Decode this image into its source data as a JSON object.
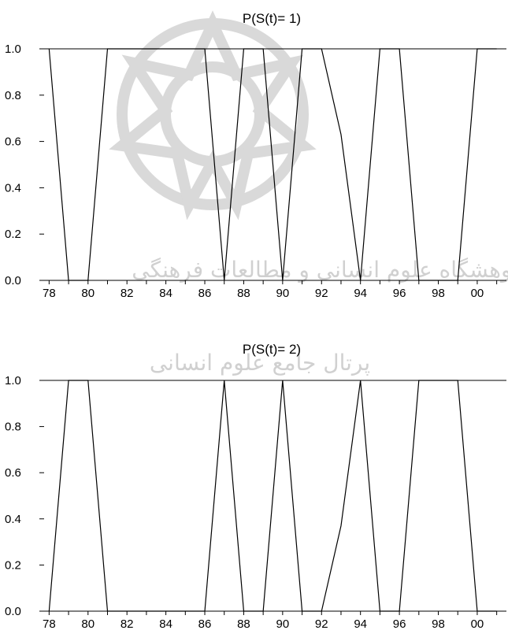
{
  "chart_data": [
    {
      "type": "line",
      "title": "P(S(t)= 1)",
      "x": [
        1978,
        1979,
        1980,
        1981,
        1982,
        1983,
        1984,
        1985,
        1986,
        1987,
        1988,
        1989,
        1990,
        1991,
        1992,
        1993,
        1994,
        1995,
        1996,
        1997,
        1998,
        1999,
        2000,
        2001
      ],
      "series": [
        {
          "values": [
            1.0,
            0.0,
            0.0,
            1.0,
            1.0,
            1.0,
            1.0,
            1.0,
            1.0,
            0.0,
            1.0,
            1.0,
            0.0,
            1.0,
            1.0,
            0.63,
            0.0,
            1.0,
            1.0,
            0.0,
            0.0,
            0.0,
            1.0,
            1.0
          ]
        }
      ],
      "xticks": [
        "78",
        "80",
        "82",
        "84",
        "86",
        "88",
        "90",
        "92",
        "94",
        "96",
        "98",
        "00"
      ],
      "yticks": [
        "0.0",
        "0.2",
        "0.4",
        "0.6",
        "0.8",
        "1.0"
      ],
      "xlim": [
        1977.5,
        2001.5
      ],
      "ylim": [
        0,
        1
      ],
      "xlabel": "",
      "ylabel": "",
      "grid": false
    },
    {
      "type": "line",
      "title": "P(S(t)= 2)",
      "x": [
        1978,
        1979,
        1980,
        1981,
        1982,
        1983,
        1984,
        1985,
        1986,
        1987,
        1988,
        1989,
        1990,
        1991,
        1992,
        1993,
        1994,
        1995,
        1996,
        1997,
        1998,
        1999,
        2000,
        2001
      ],
      "series": [
        {
          "values": [
            0.0,
            1.0,
            1.0,
            0.0,
            0.0,
            0.0,
            0.0,
            0.0,
            0.0,
            1.0,
            0.0,
            0.0,
            1.0,
            0.0,
            0.0,
            0.37,
            1.0,
            0.0,
            0.0,
            1.0,
            1.0,
            1.0,
            0.0,
            0.0
          ]
        }
      ],
      "xticks": [
        "78",
        "80",
        "82",
        "84",
        "86",
        "88",
        "90",
        "92",
        "94",
        "96",
        "98",
        "00"
      ],
      "yticks": [
        "0.0",
        "0.2",
        "0.4",
        "0.6",
        "0.8",
        "1.0"
      ],
      "xlim": [
        1977.5,
        2001.5
      ],
      "ylim": [
        0,
        1
      ],
      "xlabel": "",
      "ylabel": "",
      "grid": false
    }
  ],
  "watermark": {
    "text_line1": "پژوهشگاه علوم انسانی و مطالعات فرهنگی",
    "text_line2": "پرتال جامع علوم انسانی"
  }
}
